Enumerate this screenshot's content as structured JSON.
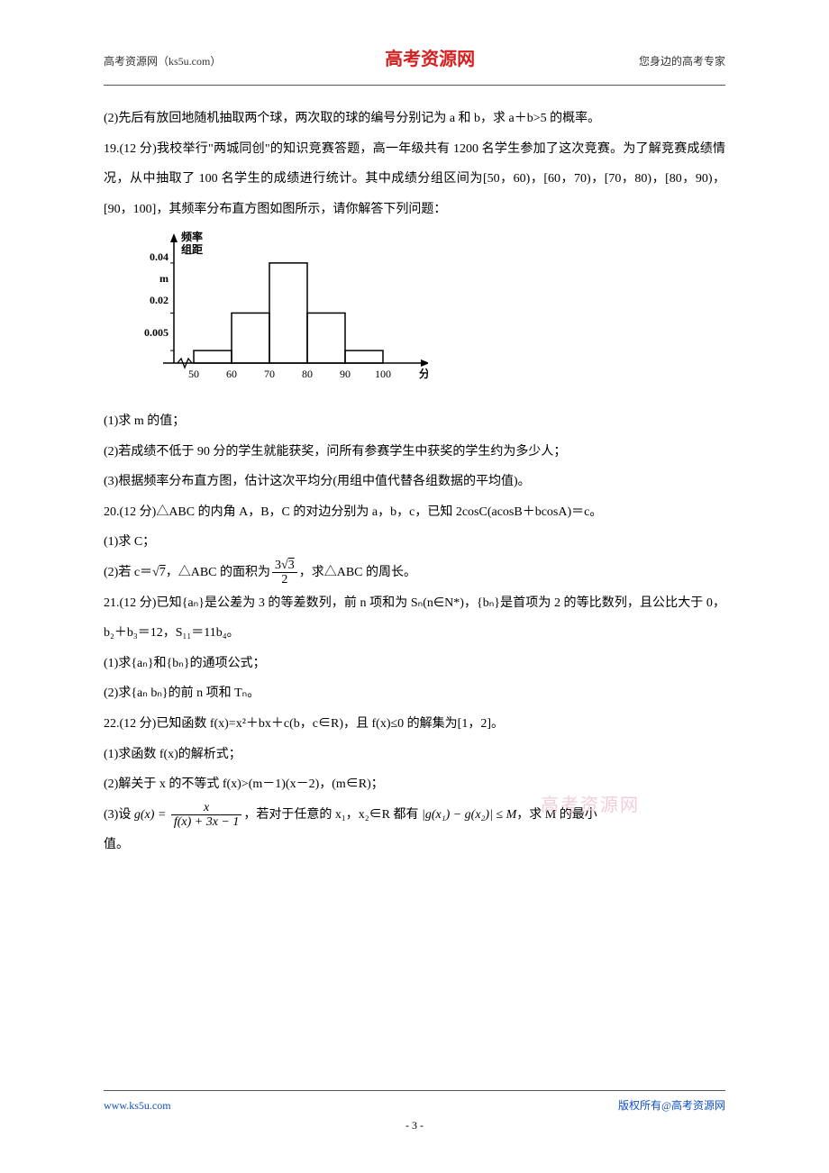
{
  "header": {
    "left": "高考资源网（ks5u.com）",
    "center": "高考资源网",
    "right": "您身边的高考专家"
  },
  "content": {
    "p1": "(2)先后有放回地随机抽取两个球，两次取的球的编号分别记为 a 和 b，求 a＋b>5 的概率。",
    "p2": "19.(12 分)我校举行\"两城同创\"的知识竞赛答题，高一年级共有 1200 名学生参加了这次竞赛。为了解竞赛成绩情况，从中抽取了 100 名学生的成绩进行统计。其中成绩分组区间为[50，60)，[60，70)，[70，80)，[80，90)，[90，100]，其频率分布直方图如图所示，请你解答下列问题：",
    "p3": "(1)求 m 的值；",
    "p4": "(2)若成绩不低于 90 分的学生就能获奖，问所有参赛学生中获奖的学生约为多少人；",
    "p5": "(3)根据频率分布直方图，估计这次平均分(用组中值代替各组数据的平均值)。",
    "p6a": "20.(12 分)△ABC 的内角 A，B，C 的对边分别为 a，b，c，已知 2cosC(acosB＋bcosA)＝c。",
    "p6b": "(1)求 C；",
    "p7a": "(2)若 c＝",
    "p7b": "，△ABC 的面积为",
    "p7c": "，求△ABC 的周长。",
    "sqrt7": "7",
    "frac1_num": "3√3",
    "frac1_den": "2",
    "p8": "21.(12 分)已知{aₙ}是公差为 3 的等差数列，前 n 项和为 Sₙ(n∈N*)，{bₙ}是首项为 2 的等比数列，且公比大于 0，b₂＋b₃＝12，S₁₁＝11b₄。",
    "p9": "(1)求{aₙ}和{bₙ}的通项公式；",
    "p10": "(2)求{aₙ bₙ}的前 n 项和 Tₙ。",
    "p11": "22.(12 分)已知函数 f(x)=x²＋bx＋c(b，c∈R)，且 f(x)≤0 的解集为[1，2]。",
    "p12": "(1)求函数 f(x)的解析式；",
    "p13": "(2)解关于 x 的不等式 f(x)>(m－1)(x－2)，(m∈R)；",
    "p14a": "(3)设",
    "p14b": "，若对于任意的 x₁，x₂∈R 都有",
    "p14c": "，求 M 的最小",
    "p14d": "值。",
    "gx": "g(x) =",
    "frac2_num": "x",
    "frac2_den": "f(x) + 3x − 1",
    "ineq": "|g(x₁) − g(x₂)| ≤ M"
  },
  "chart": {
    "ylabel1": "频率",
    "ylabel2": "组距",
    "xlabel": "分数",
    "yticks": [
      "0.04",
      "m",
      "0.02",
      "0.005"
    ],
    "ytick_positions": [
      20,
      44,
      68,
      104
    ],
    "xticks": [
      "50",
      "60",
      "70",
      "80",
      "90",
      "100"
    ],
    "bars": [
      {
        "x": 50,
        "h": 0.005
      },
      {
        "x": 60,
        "h": 0.02
      },
      {
        "x": 70,
        "h": 0.04
      },
      {
        "x": 80,
        "h": 0.02
      },
      {
        "x": 90,
        "h": 0.005
      }
    ],
    "ytick_vals": [
      0.005,
      0.02,
      0.04
    ],
    "colors": {
      "axis": "#000000",
      "bar_fill": "none",
      "bar_stroke": "#000000",
      "text": "#000000",
      "bg": "#ffffff"
    },
    "stroke_width": 1.5,
    "font_size": 12,
    "label_font_weight": "bold"
  },
  "watermark": "高考资源网",
  "footer": {
    "left": "www.ks5u.com",
    "right": "版权所有@高考资源网",
    "page": "- 3 -"
  }
}
